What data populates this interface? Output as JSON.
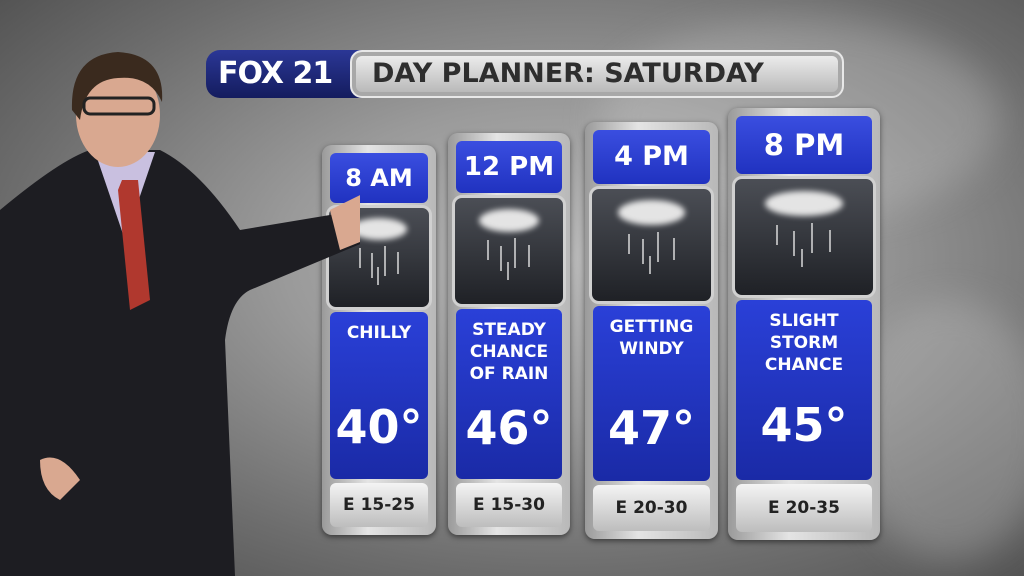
{
  "header": {
    "logo": "FOX 21",
    "title": "DAY PLANNER: SATURDAY"
  },
  "colors": {
    "card_blue": "#2336c8",
    "logo_navy": "#1c2670"
  },
  "forecast": [
    {
      "time": "8 AM",
      "icon": "rain-cloud-icon",
      "condition": "CHILLY",
      "temp": "40°",
      "wind": "E 15-25"
    },
    {
      "time": "12 PM",
      "icon": "rain-cloud-icon",
      "condition": "STEADY\nCHANCE\nOF RAIN",
      "temp": "46°",
      "wind": "E 15-30"
    },
    {
      "time": "4 PM",
      "icon": "rain-cloud-icon",
      "condition": "GETTING\nWINDY",
      "temp": "47°",
      "wind": "E 20-30"
    },
    {
      "time": "8 PM",
      "icon": "rain-cloud-icon",
      "condition": "SLIGHT\nSTORM\nCHANCE",
      "temp": "45°",
      "wind": "E 20-35"
    }
  ]
}
